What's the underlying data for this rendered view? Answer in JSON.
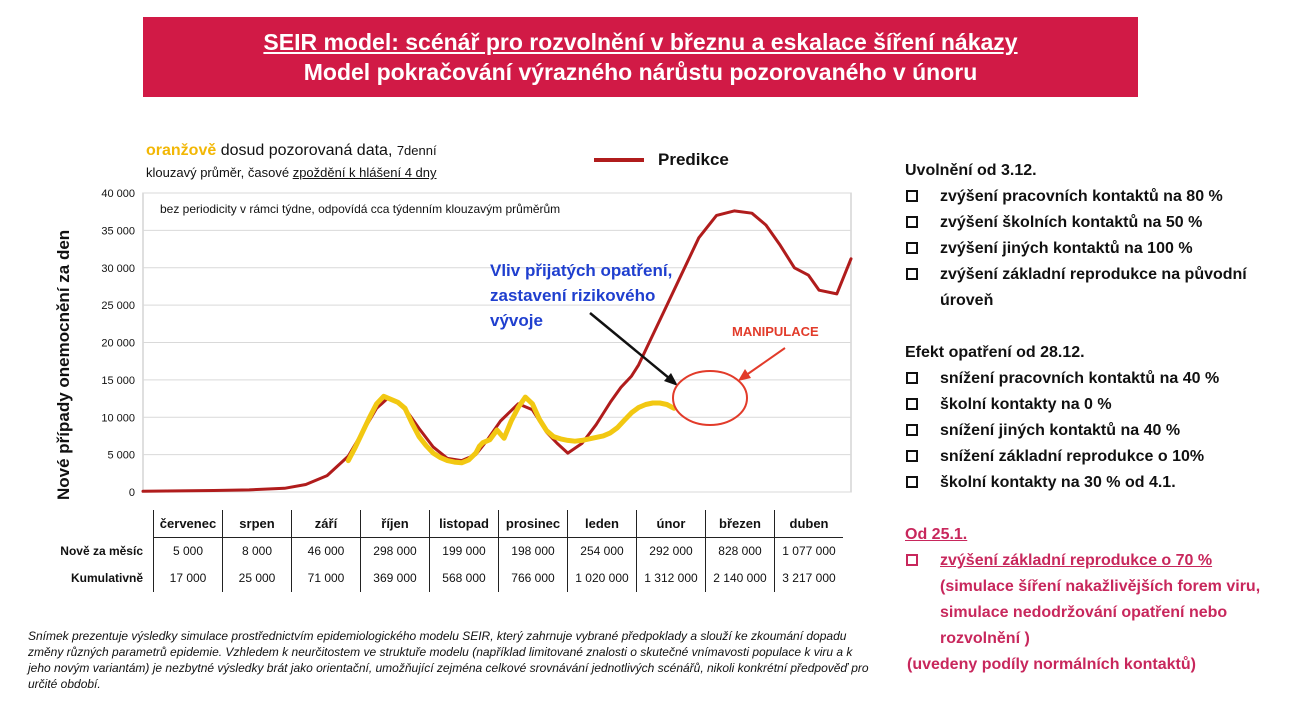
{
  "banner": {
    "title": "SEIR model: scénář pro rozvolnění v březnu a eskalace šíření nákazy",
    "subtitle": "Model pokračování výrazného nárůstu pozorovaného v únoru"
  },
  "legend": {
    "observed_word": "oranžově",
    "observed_text": " dosud pozorovaná data, ",
    "observed_small": "7denní",
    "observed_line2_a": "klouzavý průměr, časové ",
    "observed_line2_u": "zpoždění k hlášení 4 dny",
    "prediction_label": "Predikce"
  },
  "chart_data": {
    "type": "line",
    "ylabel": "Nové případy onemocnění za den",
    "ylim": [
      0,
      40000
    ],
    "yticks": [
      "0",
      "5 000",
      "10 000",
      "15 000",
      "20 000",
      "25 000",
      "30 000",
      "35 000",
      "40 000"
    ],
    "months": [
      "červenec",
      "srpen",
      "září",
      "říjen",
      "listopad",
      "prosinec",
      "leden",
      "únor",
      "březen",
      "duben"
    ],
    "note": "bez periodicity v rámci týdne, odpovídá cca týdenním klouzavým průměrům",
    "series": [
      {
        "name": "Predikce",
        "color": "#b01c1c",
        "x": [
          0,
          0.5,
          1,
          1.5,
          2,
          2.3,
          2.6,
          2.9,
          3.1,
          3.3,
          3.45,
          3.6,
          3.75,
          3.9,
          4.1,
          4.3,
          4.5,
          4.7,
          4.85,
          5.05,
          5.3,
          5.5,
          5.6,
          5.7,
          5.85,
          6.0,
          6.2,
          6.4,
          6.5,
          6.6,
          6.75,
          6.9,
          7.0,
          7.15,
          7.35,
          7.6,
          7.85,
          8.1,
          8.35,
          8.6,
          8.8,
          9.0,
          9.2,
          9.4,
          9.55,
          9.8,
          10.0
        ],
        "y": [
          100,
          150,
          200,
          280,
          500,
          1000,
          2200,
          4800,
          8000,
          11200,
          12500,
          12000,
          10500,
          8500,
          6000,
          4500,
          4200,
          5000,
          6800,
          9500,
          11800,
          11000,
          9500,
          8000,
          6500,
          5200,
          6500,
          9000,
          10500,
          12000,
          14000,
          15500,
          17000,
          20000,
          24000,
          29000,
          34000,
          37000,
          37600,
          37300,
          35700,
          33000,
          30000,
          29000,
          27000,
          26500,
          31200
        ]
      },
      {
        "name": "",
        "color": "#f2c812",
        "x": [
          2.9,
          3.0,
          3.1,
          3.2,
          3.3,
          3.4,
          3.5,
          3.6,
          3.7,
          3.8,
          3.9,
          4.0,
          4.1,
          4.2,
          4.3,
          4.4,
          4.5,
          4.6,
          4.7,
          4.75,
          4.8,
          4.9,
          5.0,
          5.1,
          5.2,
          5.3,
          5.4,
          5.5,
          5.6,
          5.7,
          5.8,
          5.9,
          6.0,
          6.1,
          6.2,
          6.3,
          6.4,
          6.5,
          6.6,
          6.7,
          6.8,
          6.9,
          7.0,
          7.1,
          7.2,
          7.3,
          7.4,
          7.5
        ],
        "y": [
          4200,
          6000,
          8000,
          10000,
          11800,
          12800,
          12400,
          12000,
          11200,
          9200,
          7400,
          6200,
          5200,
          4600,
          4200,
          4000,
          3900,
          4300,
          5200,
          6100,
          6600,
          7000,
          8300,
          7200,
          9500,
          11300,
          12700,
          11800,
          9700,
          8200,
          7400,
          7100,
          6900,
          6800,
          6900,
          7100,
          7300,
          7500,
          7900,
          8600,
          9600,
          10600,
          11300,
          11700,
          11900,
          11900,
          11700,
          11200
        ]
      }
    ]
  },
  "annotations": {
    "blue_text": "Vliv přijatých opatření, zastavení rizikového vývoje",
    "red_text": "MANIPULACE"
  },
  "table": {
    "months": [
      "červenec",
      "srpen",
      "září",
      "říjen",
      "listopad",
      "prosinec",
      "leden",
      "únor",
      "březen",
      "duben"
    ],
    "row1_label": "Nově za měsíc",
    "row1": [
      "5 000",
      "8 000",
      "46 000",
      "298 000",
      "199 000",
      "198 000",
      "254 000",
      "292 000",
      "828 000",
      "1 077 000"
    ],
    "row2_label": "Kumulativně",
    "row2": [
      "17 000",
      "25 000",
      "71 000",
      "369 000",
      "568 000",
      "766 000",
      "1 020 000",
      "1 312 000",
      "2 140 000",
      "3 217 000"
    ]
  },
  "footnote": "Snímek prezentuje výsledky simulace prostřednictvím epidemiologického modelu SEIR, který zahrnuje vybrané předpoklady a slouží ke zkoumání dopadu změny různých parametrů epidemie. Vzhledem k neurčitostem ve struktuře modelu (například limitované znalosti o skutečné vnímavosti populace k viru a k jeho novým variantám) je nezbytné výsledky brát jako orientační, umožňující zejména celkové srovnávání jednotlivých scénářů, nikoli konkrétní předpověď pro určité období.",
  "panel": {
    "sec1_title": "Uvolnění od 3.12.",
    "sec1_items": [
      "zvýšení pracovních kontaktů na 80 %",
      "zvýšení školních kontaktů na 50 %",
      "zvýšení jiných kontaktů na 100 %",
      "zvýšení základní reprodukce na původní úroveň"
    ],
    "sec2_title": "Efekt opatření od 28.12.",
    "sec2_items": [
      "snížení pracovních kontaktů na 40 %",
      "školní kontakty na 0 %",
      "snížení jiných kontaktů na 40 %",
      "snížení základní reprodukce o 10%",
      "školní kontakty na 30 % od 4.1."
    ],
    "sec3_title": "Od 25.1.",
    "sec3_item_main": "zvýšení základní reprodukce o 70 %",
    "sec3_item_sub": "(simulace šíření nakažlivějších forem viru, simulace nedodržování opatření nebo rozvolnění )",
    "sec3_paren": "(uvedeny podíly normálních kontaktů)"
  }
}
